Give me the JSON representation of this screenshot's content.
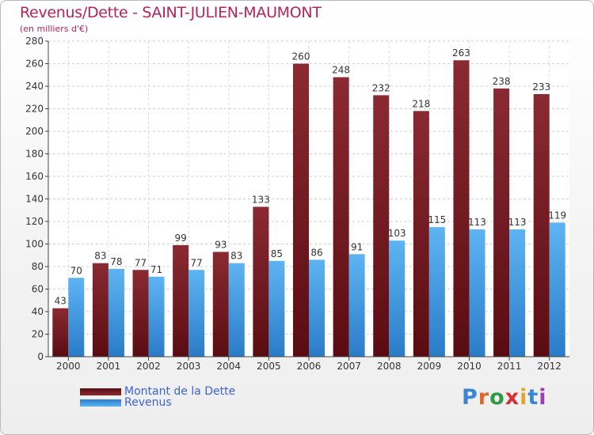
{
  "title": "Revenus/Dette - SAINT-JULIEN-MAUMONT",
  "subtitle": "(en milliers d'€)",
  "logo": "Proxiti",
  "colors": {
    "title": "#b4245a",
    "dette": "#7a1a22",
    "revenus": "#3f9be0",
    "legend_text": "#3b63d6"
  },
  "chart_data": {
    "type": "bar",
    "title": "Revenus/Dette - SAINT-JULIEN-MAUMONT",
    "ylabel": "(en milliers d'€)",
    "xlabel": "",
    "categories": [
      "2000",
      "2001",
      "2002",
      "2003",
      "2004",
      "2005",
      "2006",
      "2007",
      "2008",
      "2009",
      "2010",
      "2011",
      "2012"
    ],
    "series": [
      {
        "name": "Montant de la Dette",
        "values": [
          43,
          83,
          77,
          99,
          93,
          133,
          260,
          248,
          232,
          218,
          263,
          238,
          233
        ]
      },
      {
        "name": "Revenus",
        "values": [
          70,
          78,
          71,
          77,
          83,
          85,
          86,
          91,
          103,
          115,
          113,
          113,
          119
        ]
      }
    ],
    "ylim": [
      0,
      280
    ],
    "yticks": [
      0,
      20,
      40,
      60,
      80,
      100,
      120,
      140,
      160,
      180,
      200,
      220,
      240,
      260,
      280
    ],
    "grid": true,
    "legend": "bottom-left"
  }
}
